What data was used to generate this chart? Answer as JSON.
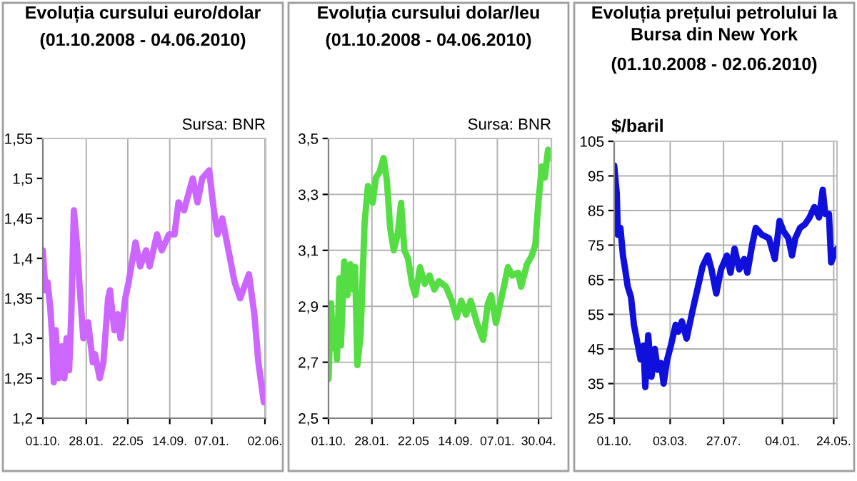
{
  "chart_data": [
    {
      "type": "line",
      "title": "Evoluția cursului euro/dolar",
      "subtitle": "(01.10.2008 - 04.06.2010)",
      "annotations": [
        "Sursa: BNR"
      ],
      "grid": "x",
      "xlim": [
        "2008-10-01",
        "2010-06-04"
      ],
      "xticks": [
        {
          "value": "2008-10-01",
          "label": "01.10."
        },
        {
          "value": "2009-01-28",
          "label": "28.01."
        },
        {
          "value": "2009-05-22",
          "label": "22.05"
        },
        {
          "value": "2009-09-14",
          "label": "14.09."
        },
        {
          "value": "2010-01-07",
          "label": "07.01."
        },
        {
          "value": "2010-06-02",
          "label": "02.06."
        }
      ],
      "ylim": [
        1.2,
        1.55
      ],
      "yticks": [
        {
          "value": 1.2,
          "label": "1,2"
        },
        {
          "value": 1.25,
          "label": "1,25"
        },
        {
          "value": 1.3,
          "label": "1,3"
        },
        {
          "value": 1.35,
          "label": "1,35"
        },
        {
          "value": 1.4,
          "label": "1,4"
        },
        {
          "value": 1.45,
          "label": "1,45"
        },
        {
          "value": 1.5,
          "label": "1,5"
        },
        {
          "value": 1.55,
          "label": "1,55"
        }
      ],
      "series": [
        {
          "color": "#cc66ff",
          "x": [
            "2008-10-01",
            "2008-10-08",
            "2008-10-14",
            "2008-10-21",
            "2008-10-27",
            "2008-10-31",
            "2008-11-05",
            "2008-11-13",
            "2008-11-22",
            "2008-11-29",
            "2008-12-05",
            "2008-12-12",
            "2008-12-18",
            "2008-12-25",
            "2009-01-02",
            "2009-01-09",
            "2009-01-20",
            "2009-02-02",
            "2009-02-15",
            "2009-02-21",
            "2009-03-06",
            "2009-03-16",
            "2009-03-29",
            "2009-04-03",
            "2009-04-15",
            "2009-04-24",
            "2009-05-02",
            "2009-05-15",
            "2009-05-24",
            "2009-06-12",
            "2009-06-25",
            "2009-07-11",
            "2009-07-21",
            "2009-08-10",
            "2009-08-23",
            "2009-09-12",
            "2009-09-27",
            "2009-10-08",
            "2009-10-23",
            "2009-11-16",
            "2009-11-29",
            "2009-12-12",
            "2009-12-31",
            "2010-01-13",
            "2010-01-23",
            "2010-02-05",
            "2010-02-22",
            "2010-03-11",
            "2010-03-26",
            "2010-04-19",
            "2010-05-04",
            "2010-05-15",
            "2010-05-24",
            "2010-05-30",
            "2010-06-04"
          ],
          "values": [
            1.41,
            1.36,
            1.37,
            1.34,
            1.3,
            1.245,
            1.31,
            1.25,
            1.29,
            1.25,
            1.3,
            1.26,
            1.33,
            1.46,
            1.42,
            1.37,
            1.3,
            1.32,
            1.27,
            1.28,
            1.25,
            1.27,
            1.35,
            1.36,
            1.31,
            1.33,
            1.3,
            1.35,
            1.37,
            1.42,
            1.39,
            1.41,
            1.39,
            1.43,
            1.41,
            1.43,
            1.43,
            1.47,
            1.46,
            1.5,
            1.47,
            1.5,
            1.51,
            1.46,
            1.43,
            1.45,
            1.41,
            1.37,
            1.35,
            1.38,
            1.33,
            1.27,
            1.24,
            1.22,
            1.23
          ]
        }
      ]
    },
    {
      "type": "line",
      "title": "Evoluția cursului dolar/leu",
      "subtitle": "(01.10.2008 - 04.06.2010)",
      "annotations": [
        "Sursa: BNR"
      ],
      "grid": true,
      "xlim": [
        "2008-10-01",
        "2010-06-04"
      ],
      "xticks": [
        {
          "value": "2008-10-01",
          "label": "01.10."
        },
        {
          "value": "2009-01-28",
          "label": "28.01."
        },
        {
          "value": "2009-05-22",
          "label": "22.05"
        },
        {
          "value": "2009-09-14",
          "label": "14.09."
        },
        {
          "value": "2010-01-07",
          "label": "07.01."
        },
        {
          "value": "2010-04-30",
          "label": "30.04."
        }
      ],
      "ylim": [
        2.5,
        3.5
      ],
      "yticks": [
        {
          "value": 2.5,
          "label": "2,5"
        },
        {
          "value": 2.7,
          "label": "2,7"
        },
        {
          "value": 2.9,
          "label": "2,9"
        },
        {
          "value": 3.1,
          "label": "3,1"
        },
        {
          "value": 3.3,
          "label": "3,3"
        },
        {
          "value": 3.5,
          "label": "3,5"
        }
      ],
      "series": [
        {
          "color": "#55dd44",
          "x": [
            "2008-10-01",
            "2008-10-08",
            "2008-10-14",
            "2008-10-21",
            "2008-10-24",
            "2008-10-31",
            "2008-11-04",
            "2008-11-13",
            "2008-11-22",
            "2008-11-30",
            "2008-12-09",
            "2008-12-13",
            "2008-12-19",
            "2008-12-28",
            "2009-01-08",
            "2009-01-17",
            "2009-01-30",
            "2009-02-08",
            "2009-02-18",
            "2009-03-01",
            "2009-03-10",
            "2009-03-19",
            "2009-03-29",
            "2009-04-09",
            "2009-04-18",
            "2009-04-27",
            "2009-05-07",
            "2009-05-18",
            "2009-05-27",
            "2009-06-09",
            "2009-06-22",
            "2009-07-05",
            "2009-07-18",
            "2009-07-31",
            "2009-08-19",
            "2009-09-04",
            "2009-09-17",
            "2009-09-30",
            "2009-10-13",
            "2009-10-26",
            "2009-11-12",
            "2009-11-29",
            "2009-12-12",
            "2009-12-21",
            "2010-01-03",
            "2010-01-20",
            "2010-02-05",
            "2010-02-17",
            "2010-03-05",
            "2010-03-13",
            "2010-03-29",
            "2010-04-11",
            "2010-04-21",
            "2010-04-30",
            "2010-05-09",
            "2010-05-17",
            "2010-05-26",
            "2010-06-02"
          ],
          "values": [
            2.64,
            2.91,
            2.75,
            2.82,
            2.71,
            3.0,
            2.76,
            3.06,
            2.94,
            3.05,
            2.96,
            3.04,
            2.69,
            2.8,
            3.2,
            3.33,
            3.27,
            3.36,
            3.38,
            3.43,
            3.35,
            3.18,
            3.1,
            3.16,
            3.27,
            3.1,
            3.07,
            2.98,
            2.94,
            3.04,
            2.98,
            3.01,
            2.96,
            2.99,
            2.97,
            2.92,
            2.86,
            2.92,
            2.87,
            2.92,
            2.84,
            2.78,
            2.91,
            2.94,
            2.84,
            2.94,
            3.04,
            3.01,
            3.02,
            2.97,
            3.05,
            3.08,
            3.12,
            3.28,
            3.4,
            3.36,
            3.46,
            3.43
          ]
        }
      ]
    },
    {
      "type": "line",
      "title": "Evoluția prețului petrolului la\nBursa din New York",
      "subtitle": "(01.10.2008 - 02.06.2010)",
      "ylabel": "$/baril",
      "grid": true,
      "xlim": [
        "2008-10-01",
        "2010-06-02"
      ],
      "xticks": [
        {
          "value": "2008-10-01",
          "label": "01.10."
        },
        {
          "value": "2009-03-03",
          "label": "03.03."
        },
        {
          "value": "2009-07-27",
          "label": "27.07."
        },
        {
          "value": "2010-01-04",
          "label": "04.01."
        },
        {
          "value": "2010-05-24",
          "label": "24.05."
        }
      ],
      "ylim": [
        25,
        105
      ],
      "yticks": [
        25,
        35,
        45,
        55,
        65,
        75,
        85,
        95,
        105
      ],
      "series": [
        {
          "color": "#1010dd",
          "x": [
            "2008-10-01",
            "2008-10-08",
            "2008-10-11",
            "2008-10-18",
            "2008-10-25",
            "2008-10-31",
            "2008-11-07",
            "2008-11-16",
            "2008-11-24",
            "2008-12-03",
            "2008-12-12",
            "2008-12-20",
            "2008-12-25",
            "2009-01-02",
            "2009-01-11",
            "2009-01-20",
            "2009-01-28",
            "2009-02-06",
            "2009-02-13",
            "2009-02-23",
            "2009-03-05",
            "2009-03-18",
            "2009-03-25",
            "2009-04-04",
            "2009-04-17",
            "2009-05-03",
            "2009-05-18",
            "2009-05-31",
            "2009-06-14",
            "2009-06-24",
            "2009-07-07",
            "2009-07-20",
            "2009-08-05",
            "2009-08-15",
            "2009-08-26",
            "2009-09-08",
            "2009-09-21",
            "2009-09-30",
            "2009-10-13",
            "2009-10-23",
            "2009-11-09",
            "2009-11-28",
            "2009-12-14",
            "2009-12-27",
            "2010-01-07",
            "2010-01-20",
            "2010-01-30",
            "2010-02-08",
            "2010-02-21",
            "2010-03-06",
            "2010-03-19",
            "2010-04-01",
            "2010-04-14",
            "2010-04-24",
            "2010-05-01",
            "2010-05-11",
            "2010-05-17",
            "2010-05-24",
            "2010-06-02"
          ],
          "values": [
            98,
            90,
            78,
            80,
            72,
            68,
            63,
            60,
            52,
            47,
            42,
            46,
            34,
            49,
            37,
            45,
            39,
            41,
            35,
            42,
            46,
            52,
            50,
            53,
            48,
            56,
            63,
            69,
            72,
            68,
            61,
            68,
            72,
            67,
            74,
            68,
            71,
            67,
            75,
            80,
            78,
            77,
            71,
            82,
            79,
            77,
            72,
            77,
            80,
            81,
            83,
            86,
            83,
            91,
            84,
            84,
            70,
            72,
            74
          ]
        }
      ]
    }
  ]
}
